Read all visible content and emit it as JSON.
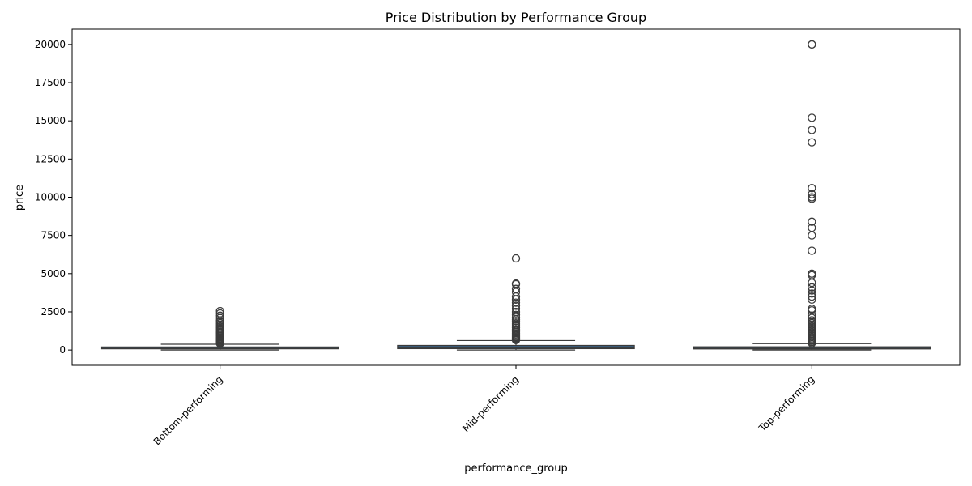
{
  "chart_data": {
    "type": "box",
    "title": "Price Distribution by Performance Group",
    "xlabel": "performance_group",
    "ylabel": "price",
    "ylim": [
      -1000,
      21000
    ],
    "yticks": [
      0,
      2500,
      5000,
      7500,
      10000,
      12500,
      15000,
      17500,
      20000
    ],
    "box_color": "#3b5f80",
    "edge_color": "#3b3b3b",
    "categories": [
      "Bottom-performing",
      "Mid-performing",
      "Top-performing"
    ],
    "groups": [
      {
        "name": "Bottom-performing",
        "whisker_low": 0,
        "q1": 80,
        "median": 120,
        "q3": 200,
        "whisker_high": 380,
        "outliers": [
          420,
          480,
          540,
          600,
          660,
          720,
          780,
          850,
          920,
          1000,
          1080,
          1150,
          1220,
          1300,
          1380,
          1450,
          1550,
          1650,
          1750,
          1850,
          1950,
          2100,
          2250,
          2400,
          2550
        ]
      },
      {
        "name": "Mid-performing",
        "whisker_low": 0,
        "q1": 90,
        "median": 160,
        "q3": 300,
        "whisker_high": 620,
        "outliers": [
          650,
          700,
          760,
          820,
          880,
          950,
          1020,
          1100,
          1180,
          1260,
          1350,
          1450,
          1550,
          1650,
          1750,
          1900,
          2000,
          2150,
          2300,
          2500,
          2700,
          2900,
          3100,
          3300,
          3500,
          3800,
          4000,
          4300,
          4350,
          6000
        ]
      },
      {
        "name": "Top-performing",
        "whisker_low": 0,
        "q1": 70,
        "median": 120,
        "q3": 210,
        "whisker_high": 420,
        "outliers": [
          450,
          520,
          600,
          680,
          760,
          850,
          950,
          1050,
          1150,
          1250,
          1350,
          1450,
          1550,
          1650,
          1750,
          1850,
          1950,
          2100,
          2250,
          2600,
          2700,
          3300,
          3500,
          3700,
          3900,
          4100,
          4400,
          4900,
          5000,
          6500,
          7500,
          8000,
          8400,
          9900,
          10000,
          10200,
          10600,
          13600,
          14400,
          15200,
          20000,
          20000
        ]
      }
    ]
  }
}
